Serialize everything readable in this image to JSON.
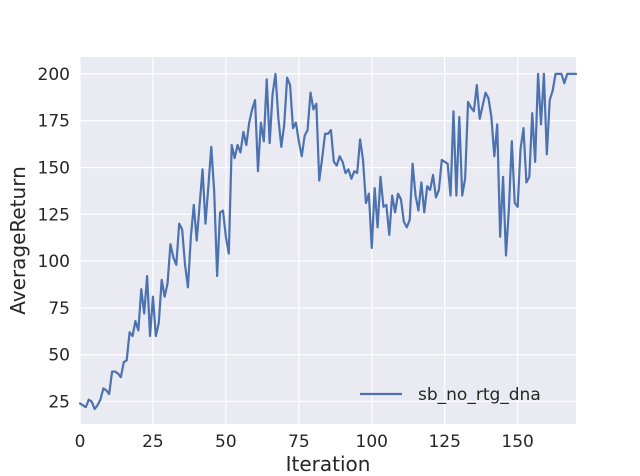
{
  "chart_data": {
    "type": "line",
    "xlabel": "Iteration",
    "ylabel": "AverageReturn",
    "xlim": [
      0,
      170
    ],
    "ylim": [
      13,
      209
    ],
    "xticks": [
      0,
      25,
      50,
      75,
      100,
      125,
      150
    ],
    "yticks": [
      25,
      50,
      75,
      100,
      125,
      150,
      175,
      200
    ],
    "grid": true,
    "legend_position": "lower-right",
    "colors": {
      "series": "#4c72b0",
      "background": "#eaeaf2",
      "grid": "#ffffff"
    },
    "series": [
      {
        "name": "sb_no_rtg_dna",
        "x": [
          0,
          1,
          2,
          3,
          4,
          5,
          6,
          7,
          8,
          9,
          10,
          11,
          12,
          13,
          14,
          15,
          16,
          17,
          18,
          19,
          20,
          21,
          22,
          23,
          24,
          25,
          26,
          27,
          28,
          29,
          30,
          31,
          32,
          33,
          34,
          35,
          36,
          37,
          38,
          39,
          40,
          41,
          42,
          43,
          44,
          45,
          46,
          47,
          48,
          49,
          50,
          51,
          52,
          53,
          54,
          55,
          56,
          57,
          58,
          59,
          60,
          61,
          62,
          63,
          64,
          65,
          66,
          67,
          68,
          69,
          70,
          71,
          72,
          73,
          74,
          75,
          76,
          77,
          78,
          79,
          80,
          81,
          82,
          83,
          84,
          85,
          86,
          87,
          88,
          89,
          90,
          91,
          92,
          93,
          94,
          95,
          96,
          97,
          98,
          99,
          100,
          101,
          102,
          103,
          104,
          105,
          106,
          107,
          108,
          109,
          110,
          111,
          112,
          113,
          114,
          115,
          116,
          117,
          118,
          119,
          120,
          121,
          122,
          123,
          124,
          125,
          126,
          127,
          128,
          129,
          130,
          131,
          132,
          133,
          134,
          135,
          136,
          137,
          138,
          139,
          140,
          141,
          142,
          143,
          144,
          145,
          146,
          147,
          148,
          149,
          150,
          151,
          152,
          153,
          154,
          155,
          156,
          157,
          158,
          159,
          160,
          161,
          162,
          163,
          164,
          165,
          166,
          167,
          168,
          169,
          170
        ],
        "values": [
          24,
          23,
          22,
          26,
          25,
          21,
          23,
          26,
          32,
          31,
          29,
          41,
          41,
          40,
          38,
          46,
          47,
          62,
          60,
          68,
          63,
          85,
          72,
          92,
          60,
          81,
          60,
          67,
          90,
          81,
          88,
          109,
          102,
          98,
          120,
          117,
          98,
          86,
          113,
          130,
          111,
          130,
          149,
          120,
          140,
          161,
          137,
          92,
          126,
          127,
          113,
          104,
          162,
          155,
          162,
          158,
          169,
          162,
          174,
          181,
          186,
          148,
          174,
          164,
          197,
          163,
          189,
          200,
          176,
          161,
          173,
          198,
          194,
          171,
          174,
          164,
          156,
          167,
          170,
          190,
          181,
          184,
          143,
          155,
          168,
          168,
          170,
          153,
          151,
          156,
          153,
          147,
          149,
          144,
          148,
          147,
          165,
          154,
          131,
          136,
          107,
          139,
          118,
          145,
          129,
          130,
          114,
          135,
          126,
          136,
          133,
          121,
          118,
          122,
          152,
          135,
          127,
          142,
          126,
          140,
          138,
          146,
          134,
          138,
          154,
          153,
          152,
          135,
          180,
          135,
          177,
          135,
          144,
          185,
          182,
          180,
          194,
          176,
          183,
          190,
          187,
          177,
          156,
          173,
          113,
          145,
          103,
          128,
          164,
          131,
          129,
          160,
          171,
          142,
          145,
          179,
          153,
          200,
          173,
          200,
          157,
          186,
          191,
          200,
          200,
          200,
          195,
          200,
          200,
          200,
          200
        ]
      }
    ]
  }
}
